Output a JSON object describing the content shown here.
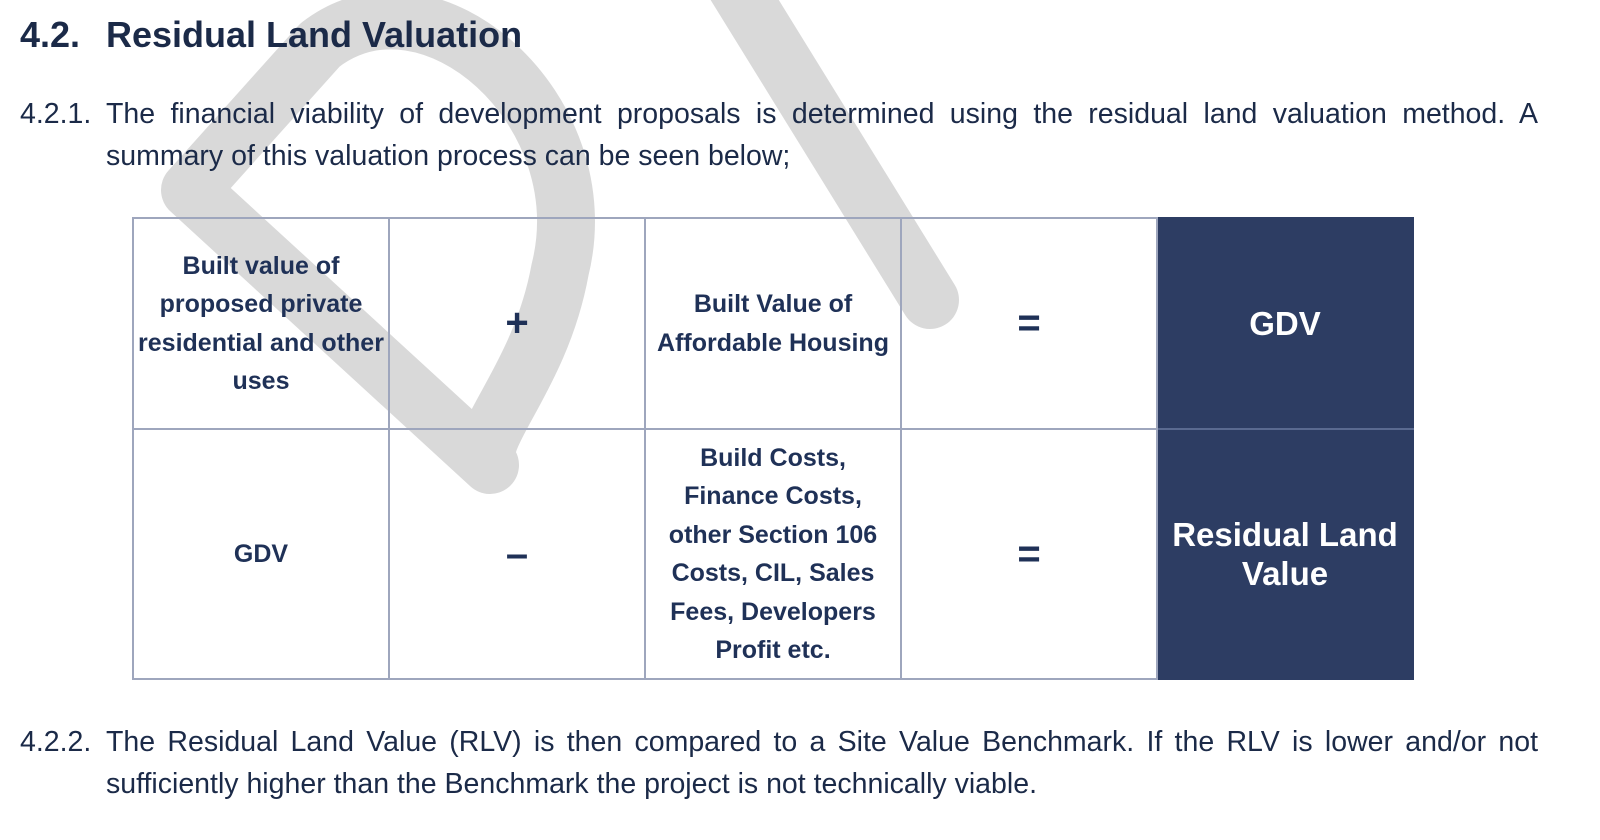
{
  "section": {
    "number": "4.2.",
    "title": "Residual Land Valuation"
  },
  "paragraphs": [
    {
      "number": "4.2.1.",
      "text": "The financial viability of development proposals is determined using the residual land valuation method.  A summary of this valuation process can be seen below;"
    },
    {
      "number": "4.2.2.",
      "text": "The Residual Land Value (RLV) is then compared to a Site Value Benchmark. If the RLV is lower and/or not sufficiently higher than the Benchmark the project is not technically viable."
    }
  ],
  "flow_table": {
    "row1": {
      "a": "Built value of proposed private residential and other uses",
      "op1": "+",
      "b": "Built Value of Affordable Housing",
      "op2": "=",
      "result": "GDV"
    },
    "row2": {
      "a": "GDV",
      "op1": "–",
      "b": "Build Costs, Finance Costs, other Section 106 Costs, CIL, Sales Fees, Developers Profit etc.",
      "op2": "=",
      "result": "Residual Land Value"
    }
  },
  "watermark": {
    "text": "DRAFT",
    "color": "#d9d9d9"
  },
  "colors": {
    "text": "#1b2a48",
    "result_bg": "#2d3d63",
    "grid": "#9ea6bd"
  }
}
